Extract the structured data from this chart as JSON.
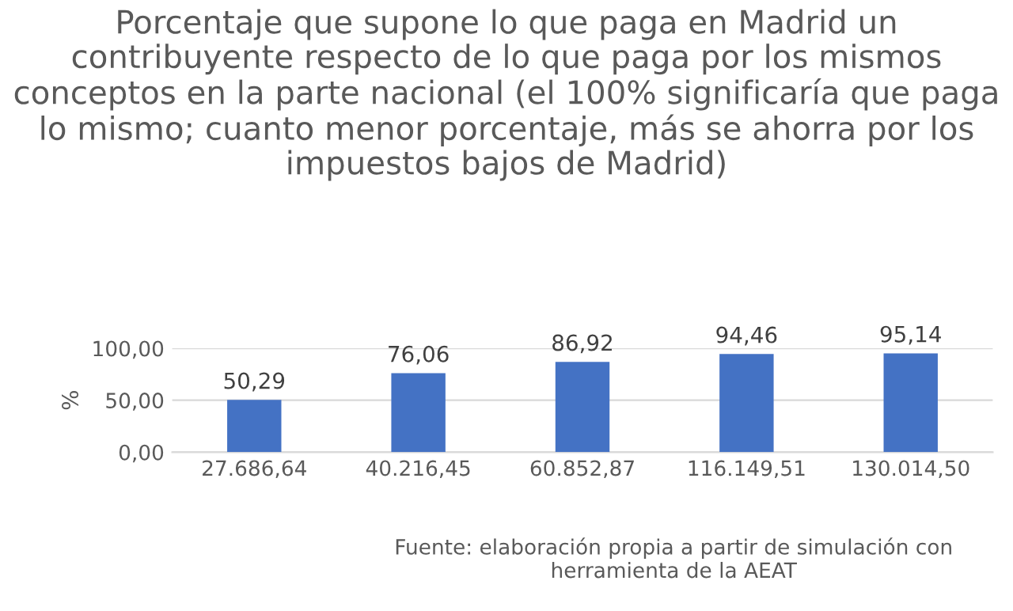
{
  "chart_data": {
    "type": "bar",
    "title": "Porcentaje que supone lo que paga en Madrid un contribuyente respecto de lo que paga por los mismos conceptos en la parte nacional (el 100% significaría que paga lo mismo; cuanto menor porcentaje, más se ahorra por los impuestos bajos de Madrid)",
    "ylabel": "%",
    "categories": [
      "27.686,64",
      "40.216,45",
      "60.852,87",
      "116.149,51",
      "130.014,50"
    ],
    "values": [
      50.29,
      76.06,
      86.92,
      94.46,
      95.14
    ],
    "value_labels": [
      "50,29",
      "76,06",
      "86,92",
      "94,46",
      "95,14"
    ],
    "color": "#4472c4",
    "ylim": [
      0,
      100
    ],
    "yticks": [
      {
        "value": 0,
        "label": "0,00"
      },
      {
        "value": 50,
        "label": "50,00"
      },
      {
        "value": 100,
        "label": "100,00"
      }
    ],
    "grid": "y",
    "annotations": [
      "Fuente: elaboración propia a partir de simulación con herramienta de la AEAT"
    ]
  }
}
